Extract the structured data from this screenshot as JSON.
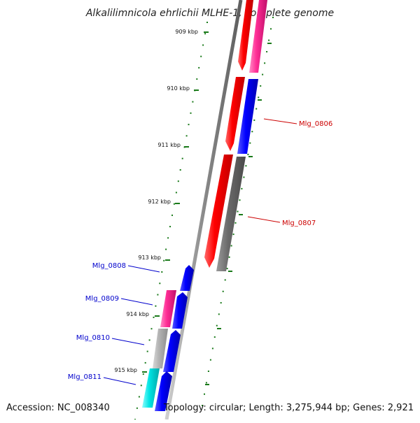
{
  "title": "Alkalilimnicola ehrlichii MLHE-1, complete genome",
  "footer": {
    "accession": "Accession: NC_008340",
    "summary": "Topology: circular; Length: 3,275,944 bp; Genes: 2,921"
  },
  "map": {
    "ticks": [
      {
        "label": "909 kbp"
      },
      {
        "label": "910 kbp"
      },
      {
        "label": "911 kbp"
      },
      {
        "label": "912 kbp"
      },
      {
        "label": "913 kbp"
      },
      {
        "label": "914 kbp"
      },
      {
        "label": "915 kbp"
      }
    ],
    "genes": [
      {
        "label": "Mlg_0806",
        "color": "#cc0000"
      },
      {
        "label": "Mlg_0807",
        "color": "#cc0000"
      },
      {
        "label": "Mlg_0808",
        "color": "#0000cc"
      },
      {
        "label": "Mlg_0809",
        "color": "#0000cc"
      },
      {
        "label": "Mlg_0810",
        "color": "#0000cc"
      },
      {
        "label": "Mlg_0811",
        "color": "#0000cc"
      }
    ],
    "feature_colors": {
      "red": "#ff0000",
      "magenta": "#ff2d95",
      "blue": "#0000ff",
      "gray": "#6a6a6a",
      "light_gray": "#b4b4b4",
      "cyan": "#00e5e5",
      "tick_green": "#1a7a1a",
      "backbone": "#888888"
    }
  }
}
